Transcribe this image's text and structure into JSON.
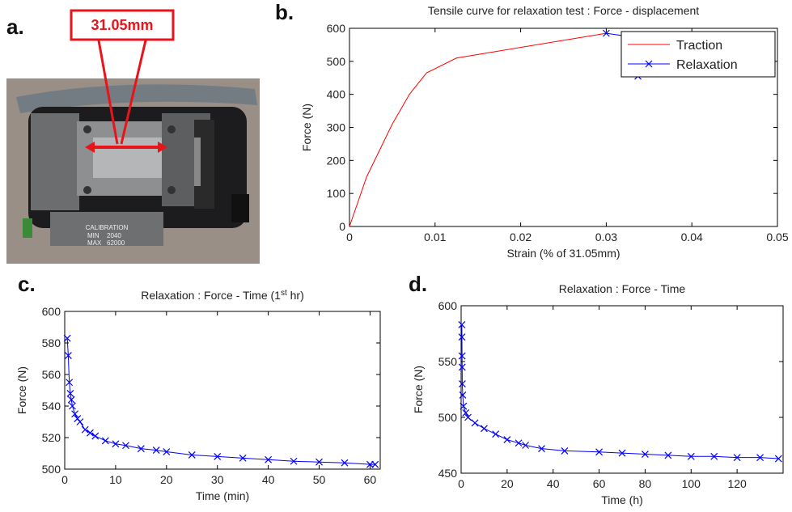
{
  "photo": {
    "panel": "a.",
    "dimension": "31.05mm",
    "plate": [
      "CALIBRATION",
      "MIN",
      "2040",
      "MAX",
      "62000"
    ]
  },
  "chart_data": [
    {
      "type": "line",
      "panel": "b.",
      "title": "Tensile curve for relaxation test : Force - displacement",
      "xlabel": "Strain (% of 31.05mm)",
      "ylabel": "Force (N)",
      "xlim": [
        0,
        0.05
      ],
      "xticks": [
        0,
        0.01,
        0.02,
        0.03,
        0.04,
        0.05
      ],
      "ylim": [
        0,
        600
      ],
      "yticks": [
        0,
        100,
        200,
        300,
        400,
        500,
        600
      ],
      "legend": "northeast",
      "series": [
        {
          "name": "Traction",
          "color": "#ff0000",
          "marker": "none",
          "x": [
            0,
            0.002,
            0.005,
            0.007,
            0.009,
            0.0125,
            0.03
          ],
          "values": [
            0,
            150,
            310,
            400,
            465,
            510,
            585
          ]
        },
        {
          "name": "Relaxation",
          "color": "#0000ff",
          "marker": "x",
          "x": [
            0.03,
            0.0335,
            0.0337,
            0.0337,
            0.0337,
            0.0337,
            0.0337,
            0.0337
          ],
          "values": [
            585,
            572,
            555,
            535,
            515,
            495,
            475,
            455
          ]
        }
      ]
    },
    {
      "type": "line",
      "panel": "c.",
      "title_parts": [
        "Relaxation : Force - Time (1",
        "st",
        " hr)"
      ],
      "xlabel": "Time (min)",
      "ylabel": "Force (N)",
      "xlim": [
        0,
        62
      ],
      "xticks": [
        0,
        10,
        20,
        30,
        40,
        50,
        60
      ],
      "ylim": [
        500,
        600
      ],
      "yticks": [
        500,
        520,
        540,
        560,
        580,
        600
      ],
      "series": [
        {
          "color": "#0000ff",
          "marker": "x",
          "x": [
            0.5,
            0.7,
            0.9,
            1.1,
            1.3,
            1.5,
            2,
            2.5,
            3,
            4,
            5,
            6,
            8,
            10,
            12,
            15,
            18,
            20,
            25,
            30,
            35,
            40,
            45,
            50,
            55,
            60,
            61
          ],
          "values": [
            583,
            572,
            555,
            548,
            544,
            540,
            535,
            532,
            530,
            525,
            523,
            521,
            518,
            516,
            515,
            513,
            512,
            511,
            509,
            508,
            507,
            506,
            505,
            504.5,
            504,
            503,
            503
          ]
        }
      ]
    },
    {
      "type": "line",
      "panel": "d.",
      "title": "Relaxation : Force - Time",
      "xlabel": "Time (h)",
      "ylabel": "Force (N)",
      "xlim": [
        0,
        140
      ],
      "xticks": [
        0,
        20,
        40,
        60,
        80,
        100,
        120
      ],
      "ylim": [
        450,
        600
      ],
      "yticks": [
        450,
        500,
        550,
        600
      ],
      "series": [
        {
          "color": "#0000ff",
          "marker": "x",
          "x": [
            0.3,
            0.35,
            0.4,
            0.45,
            0.5,
            0.7,
            1,
            2,
            3,
            6,
            10,
            15,
            20,
            25,
            28,
            35,
            45,
            60,
            70,
            80,
            90,
            100,
            110,
            120,
            130,
            138
          ],
          "values": [
            583,
            572,
            555,
            545,
            530,
            520,
            510,
            504,
            500,
            495,
            490,
            485,
            480,
            477,
            475,
            472,
            470,
            469,
            468,
            467,
            466,
            465,
            465,
            464,
            464,
            463
          ]
        }
      ]
    }
  ]
}
